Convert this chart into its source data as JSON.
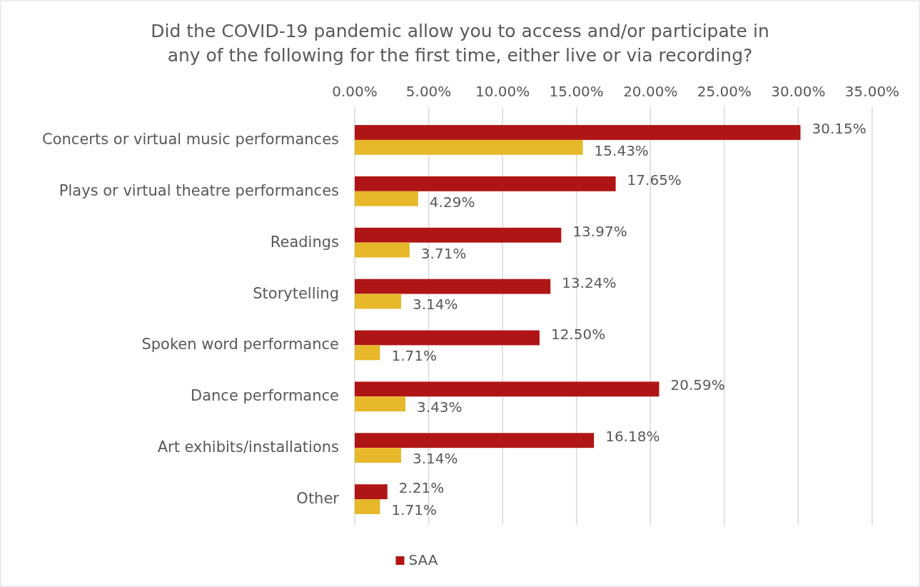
{
  "chart_data": {
    "type": "bar",
    "orientation": "horizontal",
    "title": "Did the COVID-19 pandemic allow you to access and/or participate in any of the following for the first time, either live or via recording?",
    "categories": [
      "Concerts or virtual music performances",
      "Plays or virtual theatre performances",
      "Readings",
      "Storytelling",
      "Spoken word performance",
      "Dance performance",
      "Art exhibits/installations",
      "Other"
    ],
    "series": [
      {
        "name": "SAA",
        "color": "#b01515",
        "values": [
          30.15,
          17.65,
          13.97,
          13.24,
          12.5,
          20.59,
          16.18,
          2.21
        ],
        "value_labels": [
          "30.15%",
          "17.65%",
          "13.97%",
          "13.24%",
          "12.50%",
          "20.59%",
          "16.18%",
          "2.21%"
        ]
      },
      {
        "color": "#e6b82a",
        "values": [
          15.43,
          4.29,
          3.71,
          3.14,
          1.71,
          3.43,
          3.14,
          1.71
        ],
        "value_labels": [
          "15.43%",
          "4.29%",
          "3.71%",
          "3.14%",
          "1.71%",
          "3.43%",
          "3.14%",
          "1.71%"
        ]
      }
    ],
    "xlim": [
      0,
      35
    ],
    "xticks": [
      {
        "value": 0,
        "label": "0.00%"
      },
      {
        "value": 5,
        "label": "5.00%"
      },
      {
        "value": 10,
        "label": "10.00%"
      },
      {
        "value": 15,
        "label": "15.00%"
      },
      {
        "value": 20,
        "label": "20.00%"
      },
      {
        "value": 25,
        "label": "25.00%"
      },
      {
        "value": 30,
        "label": "30.00%"
      },
      {
        "value": 35,
        "label": "35.00%"
      }
    ],
    "grid": "x",
    "legend": "bottom"
  }
}
